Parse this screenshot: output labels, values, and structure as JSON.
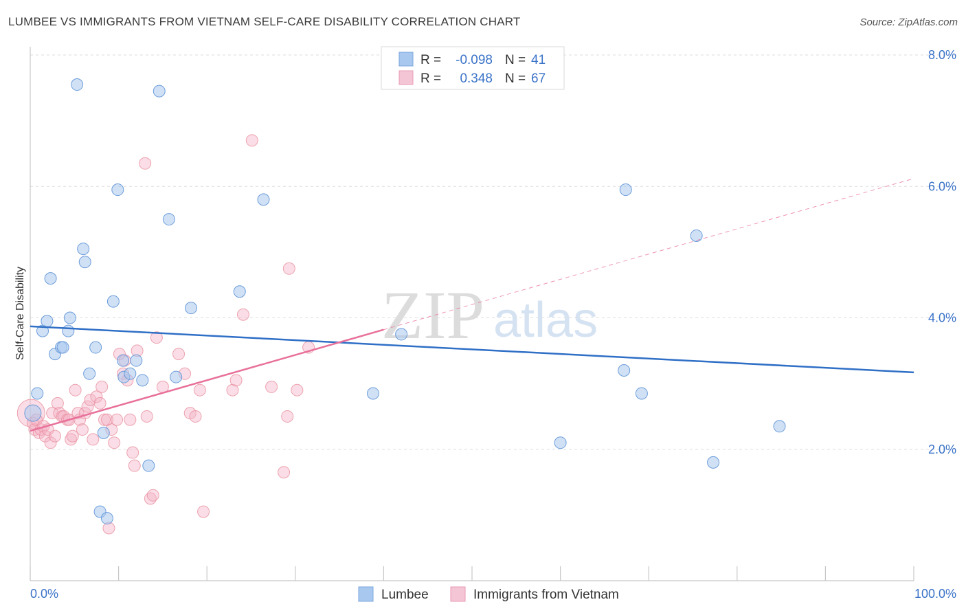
{
  "title": "LUMBEE VS IMMIGRANTS FROM VIETNAM SELF-CARE DISABILITY CORRELATION CHART",
  "source": "Source: ZipAtlas.com",
  "watermark": {
    "zip": "ZIP",
    "atlas": "atlas"
  },
  "legend": {
    "rows": [
      {
        "r_label": "R =",
        "r_value": "-0.098",
        "n_label": "N =",
        "n_value": "41",
        "color": "#a9c8ef"
      },
      {
        "r_label": "R =",
        "r_value": "0.348",
        "n_label": "N =",
        "n_value": "67",
        "color": "#f4b4c8"
      }
    ]
  },
  "bottom_legend": [
    {
      "label": "Lumbee",
      "color": "#a9c8ef"
    },
    {
      "label": "Immigrants from Vietnam",
      "color": "#f4b4c8"
    }
  ],
  "colors": {
    "blue_point": "#a9c8ef",
    "blue_line": "#2f6fc6",
    "pink_point": "#f4b4c8",
    "pink_line": "#e8709a",
    "axis_text": "#3b73c8"
  },
  "chart_data": {
    "type": "scatter",
    "title": "LUMBEE VS IMMIGRANTS FROM VIETNAM SELF-CARE DISABILITY CORRELATION CHART",
    "xlabel": "",
    "ylabel": "Self-Care Disability",
    "xlim": [
      0,
      100
    ],
    "ylim": [
      0,
      8
    ],
    "x_tick_labels": [
      "0.0%",
      "100.0%"
    ],
    "y_ticks": [
      2,
      4,
      6,
      8
    ],
    "y_tick_labels": [
      "2.0%",
      "4.0%",
      "6.0%",
      "8.0%"
    ],
    "grid": "horizontal dashed",
    "series": [
      {
        "name": "Lumbee",
        "color": "#a9c8ef",
        "points": [
          [
            0.3,
            2.55
          ],
          [
            0.8,
            2.85
          ],
          [
            1.4,
            3.8
          ],
          [
            1.9,
            3.95
          ],
          [
            2.3,
            4.6
          ],
          [
            2.8,
            3.45
          ],
          [
            3.5,
            3.55
          ],
          [
            3.7,
            3.55
          ],
          [
            4.3,
            3.8
          ],
          [
            4.5,
            4.0
          ],
          [
            5.3,
            7.55
          ],
          [
            6.0,
            5.05
          ],
          [
            6.2,
            4.85
          ],
          [
            6.7,
            3.15
          ],
          [
            7.4,
            3.55
          ],
          [
            7.9,
            1.05
          ],
          [
            8.3,
            2.25
          ],
          [
            8.7,
            0.95
          ],
          [
            9.4,
            4.25
          ],
          [
            9.9,
            5.95
          ],
          [
            10.5,
            3.35
          ],
          [
            10.6,
            3.1
          ],
          [
            11.3,
            3.15
          ],
          [
            12.0,
            3.35
          ],
          [
            12.7,
            3.05
          ],
          [
            13.4,
            1.75
          ],
          [
            14.6,
            7.45
          ],
          [
            15.7,
            5.5
          ],
          [
            16.5,
            3.1
          ],
          [
            18.2,
            4.15
          ],
          [
            23.7,
            4.4
          ],
          [
            26.4,
            5.8
          ],
          [
            38.8,
            2.85
          ],
          [
            42.0,
            3.75
          ],
          [
            60.0,
            2.1
          ],
          [
            67.2,
            3.2
          ],
          [
            67.4,
            5.95
          ],
          [
            69.2,
            2.85
          ],
          [
            75.4,
            5.25
          ],
          [
            77.3,
            1.8
          ],
          [
            84.8,
            2.35
          ]
        ]
      },
      {
        "name": "Immigrants from Vietnam",
        "color": "#f4b4c8",
        "points": [
          [
            0.1,
            2.55
          ],
          [
            0.3,
            2.4
          ],
          [
            0.5,
            2.3
          ],
          [
            0.7,
            2.45
          ],
          [
            1.0,
            2.25
          ],
          [
            1.2,
            2.3
          ],
          [
            1.5,
            2.35
          ],
          [
            1.7,
            2.2
          ],
          [
            2.0,
            2.3
          ],
          [
            2.3,
            2.1
          ],
          [
            2.5,
            2.55
          ],
          [
            2.8,
            2.2
          ],
          [
            3.1,
            2.7
          ],
          [
            3.3,
            2.55
          ],
          [
            3.6,
            2.5
          ],
          [
            3.8,
            2.5
          ],
          [
            4.2,
            2.45
          ],
          [
            4.4,
            2.45
          ],
          [
            4.6,
            2.15
          ],
          [
            4.8,
            2.2
          ],
          [
            5.1,
            2.9
          ],
          [
            5.4,
            2.55
          ],
          [
            5.6,
            2.45
          ],
          [
            5.9,
            2.3
          ],
          [
            6.2,
            2.55
          ],
          [
            6.5,
            2.65
          ],
          [
            6.8,
            2.75
          ],
          [
            7.1,
            2.15
          ],
          [
            7.5,
            2.8
          ],
          [
            7.9,
            2.7
          ],
          [
            8.1,
            2.95
          ],
          [
            8.4,
            2.45
          ],
          [
            8.7,
            2.45
          ],
          [
            8.9,
            0.8
          ],
          [
            9.2,
            2.3
          ],
          [
            9.5,
            2.1
          ],
          [
            9.8,
            2.45
          ],
          [
            10.1,
            3.45
          ],
          [
            10.5,
            3.15
          ],
          [
            10.7,
            3.35
          ],
          [
            11.0,
            3.05
          ],
          [
            11.3,
            2.45
          ],
          [
            11.6,
            1.95
          ],
          [
            11.8,
            1.75
          ],
          [
            12.1,
            3.5
          ],
          [
            13.0,
            6.35
          ],
          [
            13.2,
            2.5
          ],
          [
            13.6,
            1.25
          ],
          [
            13.9,
            1.3
          ],
          [
            14.3,
            3.7
          ],
          [
            15.0,
            2.95
          ],
          [
            16.8,
            3.45
          ],
          [
            17.5,
            3.15
          ],
          [
            18.1,
            2.55
          ],
          [
            18.7,
            2.5
          ],
          [
            19.2,
            2.9
          ],
          [
            19.6,
            1.05
          ],
          [
            22.9,
            2.9
          ],
          [
            23.3,
            3.05
          ],
          [
            24.1,
            4.05
          ],
          [
            25.1,
            6.7
          ],
          [
            27.3,
            2.95
          ],
          [
            28.7,
            1.65
          ],
          [
            29.1,
            2.5
          ],
          [
            29.3,
            4.75
          ],
          [
            30.2,
            2.9
          ],
          [
            31.5,
            3.55
          ]
        ]
      }
    ],
    "trend_lines": [
      {
        "series": "Lumbee",
        "x": [
          0,
          100
        ],
        "y": [
          3.87,
          3.17
        ],
        "style": "solid"
      },
      {
        "series": "Immigrants from Vietnam",
        "x": [
          0,
          40
        ],
        "y": [
          2.28,
          3.82
        ],
        "style": "solid"
      },
      {
        "series": "Immigrants from Vietnam",
        "x": [
          40,
          100
        ],
        "y": [
          3.82,
          6.12
        ],
        "style": "dashed"
      }
    ]
  }
}
